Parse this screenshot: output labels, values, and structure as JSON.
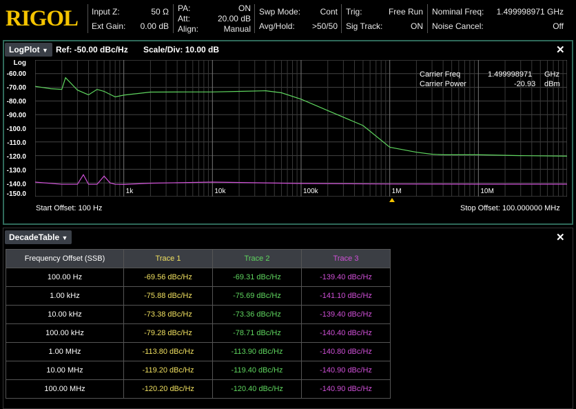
{
  "brand": "RIGOL",
  "status": {
    "input_z_label": "Input Z:",
    "input_z": "50 Ω",
    "ext_gain_label": "Ext Gain:",
    "ext_gain": "0.00 dB",
    "pa_label": "PA:",
    "pa": "ON",
    "att_label": "Att:",
    "att": "20.00 dB",
    "align_label": "Align:",
    "align": "Manual",
    "swp_mode_label": "Swp Mode:",
    "swp_mode": "Cont",
    "avg_hold_label": "Avg/Hold:",
    "avg_hold": ">50/50",
    "trig_label": "Trig:",
    "trig": "Free Run",
    "sig_track_label": "Sig Track:",
    "sig_track": "ON",
    "nominal_freq_label": "Nominal Freq:",
    "nominal_freq": "1.499998971 GHz",
    "noise_cancel_label": "Noise Cancel:",
    "noise_cancel": "Off"
  },
  "logplot": {
    "tab_label": "LogPlot",
    "ref": "Ref: -50.00 dBc/Hz",
    "scale": "Scale/Div: 10.00 dB",
    "y_mode": "Log",
    "y_ticks": [
      "-60.00",
      "-70.00",
      "-80.00",
      "-90.00",
      "-100.0",
      "-110.0",
      "-120.0",
      "-130.0",
      "-140.0",
      "-150.0"
    ],
    "x_ticks": [
      "1k",
      "10k",
      "100k",
      "1M",
      "10M"
    ],
    "start_offset": "Start Offset: 100 Hz",
    "stop_offset": "Stop Offset: 100.000000 MHz",
    "carrier_freq_label": "Carrier Freq",
    "carrier_freq": "1.499998971",
    "carrier_freq_unit": "GHz",
    "carrier_power_label": "Carrier Power",
    "carrier_power": "-20.93",
    "carrier_power_unit": "dBm",
    "close_icon": "close-icon"
  },
  "chart_data": {
    "type": "line",
    "x_scale": "log",
    "x_unit": "Hz",
    "xlim": [
      100,
      100000000
    ],
    "ylim": [
      -150,
      -50
    ],
    "grid": true,
    "series": [
      {
        "color": "#5fd65f",
        "x": [
          100,
          150,
          200,
          220,
          300,
          400,
          500,
          600,
          800,
          1000,
          2000,
          5000,
          10000,
          20000,
          40000,
          60000,
          100000,
          200000,
          500000,
          1000000,
          2000000,
          3000000,
          4000000,
          10000000,
          30000000,
          100000000
        ],
        "values": [
          -69.3,
          -71,
          -71.5,
          -63,
          -72,
          -75.5,
          -71.5,
          -73,
          -77,
          -75.7,
          -73.5,
          -73.4,
          -73.4,
          -73,
          -72.5,
          -74,
          -78.7,
          -87,
          -98,
          -113.9,
          -117.5,
          -119,
          -119.4,
          -119.4,
          -120,
          -120.4
        ]
      },
      {
        "color": "#d050d8",
        "x": [
          100,
          200,
          300,
          350,
          400,
          500,
          600,
          700,
          800,
          1000,
          2000,
          10000,
          100000,
          1000000,
          10000000,
          100000000
        ],
        "values": [
          -139.4,
          -141,
          -141,
          -134,
          -141,
          -141,
          -135,
          -140,
          -141,
          -141.1,
          -140.2,
          -139.4,
          -140.4,
          -140.8,
          -140.9,
          -140.9
        ]
      }
    ]
  },
  "decade_table": {
    "tab_label": "DecadeTable",
    "close_icon": "close-icon",
    "headers": [
      "Frequency Offset (SSB)",
      "Trace 1",
      "Trace 2",
      "Trace 3"
    ],
    "rows": [
      [
        "100.00 Hz",
        "-69.56 dBc/Hz",
        "-69.31 dBc/Hz",
        "-139.40 dBc/Hz"
      ],
      [
        "1.00 kHz",
        "-75.88 dBc/Hz",
        "-75.69 dBc/Hz",
        "-141.10 dBc/Hz"
      ],
      [
        "10.00 kHz",
        "-73.38 dBc/Hz",
        "-73.36 dBc/Hz",
        "-139.40 dBc/Hz"
      ],
      [
        "100.00 kHz",
        "-79.28 dBc/Hz",
        "-78.71 dBc/Hz",
        "-140.40 dBc/Hz"
      ],
      [
        "1.00 MHz",
        "-113.80 dBc/Hz",
        "-113.90 dBc/Hz",
        "-140.80 dBc/Hz"
      ],
      [
        "10.00 MHz",
        "-119.20 dBc/Hz",
        "-119.40 dBc/Hz",
        "-140.90 dBc/Hz"
      ],
      [
        "100.00 MHz",
        "-120.20 dBc/Hz",
        "-120.40 dBc/Hz",
        "-140.90 dBc/Hz"
      ]
    ]
  }
}
